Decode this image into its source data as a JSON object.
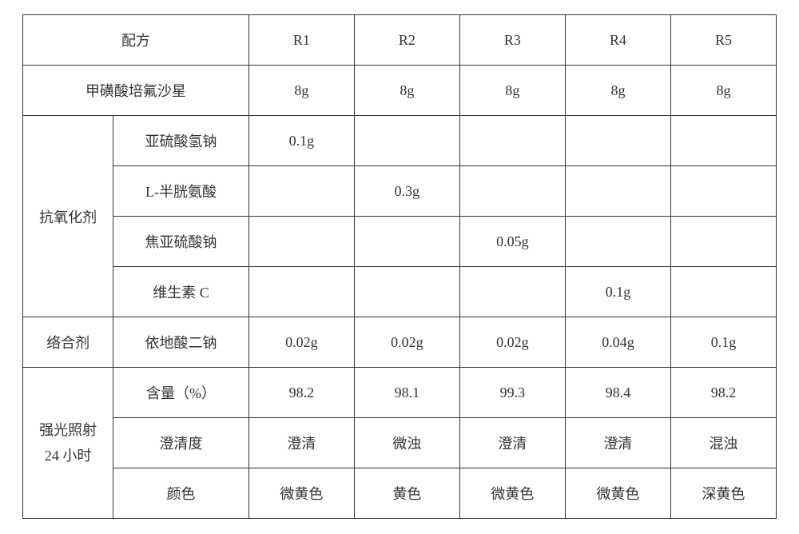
{
  "header": {
    "formula": "配方",
    "R1": "R1",
    "R2": "R2",
    "R3": "R3",
    "R4": "R4",
    "R5": "R5"
  },
  "drug": {
    "label": "甲磺酸培氟沙星",
    "R1": "8g",
    "R2": "8g",
    "R3": "8g",
    "R4": "8g",
    "R5": "8g"
  },
  "antioxidant": {
    "group": "抗氧化剂",
    "rows": [
      {
        "name": "亚硫酸氢钠",
        "R1": "0.1g",
        "R2": "",
        "R3": "",
        "R4": "",
        "R5": ""
      },
      {
        "name": "L-半胱氨酸",
        "R1": "",
        "R2": "0.3g",
        "R3": "",
        "R4": "",
        "R5": ""
      },
      {
        "name": "焦亚硫酸钠",
        "R1": "",
        "R2": "",
        "R3": "0.05g",
        "R4": "",
        "R5": ""
      },
      {
        "name": "维生素 C",
        "R1": "",
        "R2": "",
        "R3": "",
        "R4": "0.1g",
        "R5": ""
      }
    ]
  },
  "chelator": {
    "group": "络合剂",
    "name": "依地酸二钠",
    "R1": "0.02g",
    "R2": "0.02g",
    "R3": "0.02g",
    "R4": "0.04g",
    "R5": "0.1g"
  },
  "light": {
    "group": "强光照射\n24 小时",
    "rows": [
      {
        "name": "含量（%）",
        "R1": "98.2",
        "R2": "98.1",
        "R3": "99.3",
        "R4": "98.4",
        "R5": "98.2"
      },
      {
        "name": "澄清度",
        "R1": "澄清",
        "R2": "微浊",
        "R3": "澄清",
        "R4": "澄清",
        "R5": "混浊"
      },
      {
        "name": "颜色",
        "R1": "微黄色",
        "R2": "黄色",
        "R3": "微黄色",
        "R4": "微黄色",
        "R5": "深黄色"
      }
    ]
  }
}
